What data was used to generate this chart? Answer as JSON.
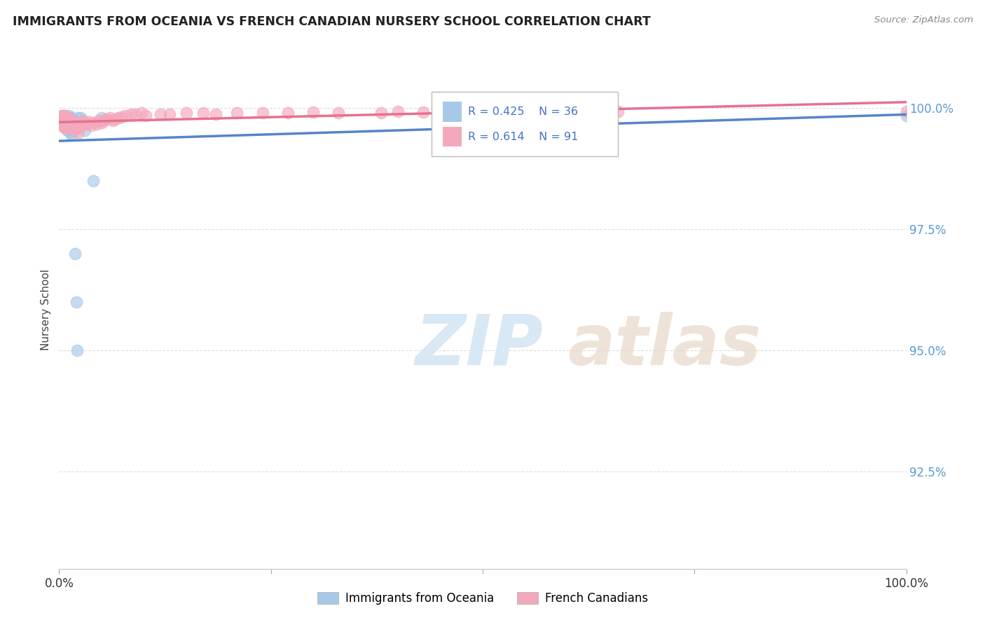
{
  "title": "IMMIGRANTS FROM OCEANIA VS FRENCH CANADIAN NURSERY SCHOOL CORRELATION CHART",
  "source": "Source: ZipAtlas.com",
  "ylabel_label": "Nursery School",
  "xmin": 0.0,
  "xmax": 100.0,
  "ymin": 90.5,
  "ymax": 101.2,
  "yticks": [
    92.5,
    95.0,
    97.5,
    100.0
  ],
  "ytick_labels": [
    "92.5%",
    "95.0%",
    "97.5%",
    "100.0%"
  ],
  "xtick_positions": [
    0.0,
    25.0,
    50.0,
    75.0,
    100.0
  ],
  "xtick_labels": [
    "0.0%",
    "",
    "",
    "",
    "100.0%"
  ],
  "legend_blue_r": "R = 0.425",
  "legend_blue_n": "N = 36",
  "legend_pink_r": "R = 0.614",
  "legend_pink_n": "N = 91",
  "blue_color": "#A8C8E8",
  "pink_color": "#F4A8BC",
  "blue_line_color": "#5585C8",
  "pink_line_color": "#E87090",
  "background_color": "#FFFFFF",
  "grid_color": "#DDDDDD",
  "watermark_zip": "ZIP",
  "watermark_atlas": "atlas",
  "oceania_x": [
    0.5,
    0.6,
    0.6,
    0.7,
    0.7,
    0.8,
    0.8,
    0.8,
    0.9,
    0.9,
    1.0,
    1.0,
    1.0,
    1.1,
    1.1,
    1.2,
    1.2,
    1.3,
    1.3,
    1.4,
    1.5,
    1.5,
    1.5,
    1.6,
    1.7,
    1.8,
    1.9,
    2.0,
    2.1,
    2.2,
    2.5,
    3.0,
    4.0,
    5.0,
    65.0,
    100.0
  ],
  "oceania_y": [
    99.85,
    99.8,
    99.75,
    99.7,
    99.85,
    99.7,
    99.65,
    99.75,
    99.8,
    99.65,
    99.65,
    99.6,
    99.55,
    99.85,
    99.75,
    99.8,
    99.6,
    99.6,
    99.5,
    99.65,
    99.55,
    99.45,
    99.8,
    99.7,
    99.6,
    99.55,
    97.0,
    96.0,
    95.0,
    99.8,
    99.8,
    99.55,
    98.5,
    99.8,
    99.85,
    99.85
  ],
  "french_x": [
    0.3,
    0.3,
    0.3,
    0.3,
    0.3,
    0.4,
    0.5,
    0.5,
    0.6,
    0.6,
    0.6,
    0.6,
    0.7,
    0.7,
    0.75,
    0.75,
    0.75,
    0.8,
    0.85,
    0.85,
    0.85,
    0.9,
    0.95,
    1.0,
    1.05,
    1.1,
    1.1,
    1.1,
    1.15,
    1.2,
    1.25,
    1.4,
    1.4,
    1.5,
    1.55,
    1.6,
    1.7,
    1.7,
    1.8,
    1.85,
    1.9,
    2.0,
    2.0,
    2.1,
    2.2,
    2.3,
    2.3,
    2.4,
    2.6,
    2.9,
    3.2,
    3.5,
    3.8,
    4.1,
    4.4,
    4.7,
    5.0,
    5.3,
    5.6,
    6.0,
    6.3,
    6.6,
    7.0,
    7.3,
    7.8,
    8.5,
    9.0,
    9.7,
    10.2,
    12.0,
    13.0,
    15.0,
    17.0,
    18.5,
    21.0,
    24.0,
    27.0,
    30.0,
    33.0,
    38.0,
    40.0,
    43.0,
    46.0,
    49.0,
    52.0,
    55.0,
    57.0,
    59.0,
    61.0,
    66.0,
    100.0
  ],
  "french_y": [
    99.85,
    99.8,
    99.75,
    99.7,
    99.65,
    99.85,
    99.75,
    99.65,
    99.85,
    99.75,
    99.65,
    99.6,
    99.78,
    99.68,
    99.8,
    99.7,
    99.6,
    99.75,
    99.82,
    99.7,
    99.65,
    99.72,
    99.6,
    99.68,
    99.75,
    99.8,
    99.68,
    99.58,
    99.75,
    99.65,
    99.6,
    99.7,
    99.58,
    99.68,
    99.62,
    99.72,
    99.68,
    99.58,
    99.72,
    99.6,
    99.62,
    99.68,
    99.58,
    99.62,
    99.6,
    99.65,
    99.5,
    99.68,
    99.65,
    99.75,
    99.68,
    99.72,
    99.65,
    99.7,
    99.68,
    99.75,
    99.7,
    99.75,
    99.78,
    99.8,
    99.75,
    99.78,
    99.8,
    99.82,
    99.85,
    99.88,
    99.88,
    99.9,
    99.85,
    99.88,
    99.88,
    99.9,
    99.9,
    99.88,
    99.9,
    99.9,
    99.9,
    99.92,
    99.9,
    99.9,
    99.93,
    99.92,
    99.93,
    99.92,
    99.92,
    99.93,
    99.93,
    99.92,
    99.93,
    99.93,
    99.93
  ]
}
